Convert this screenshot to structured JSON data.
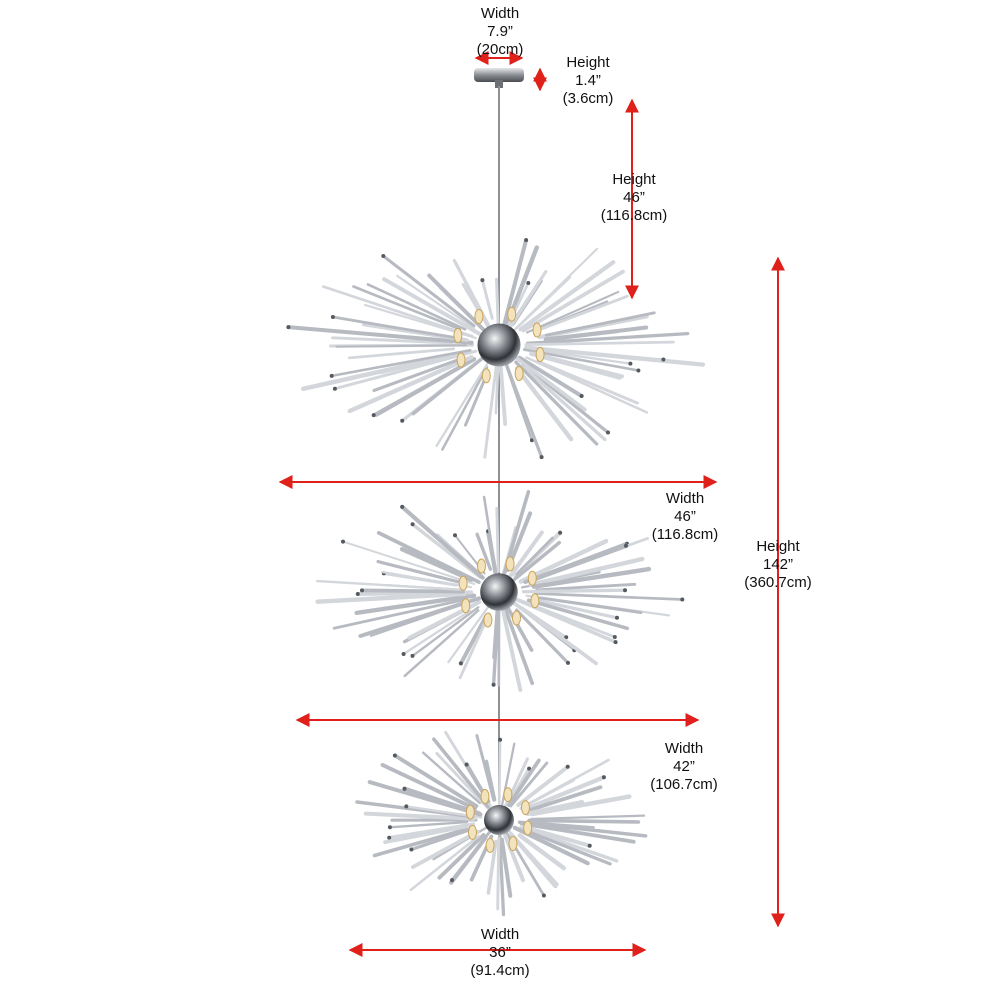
{
  "colors": {
    "arrow": "#e0201b",
    "chrome": "#8a8d92",
    "rod": "#c9ccd1",
    "bulb": "#d9b36a"
  },
  "dimensions": {
    "canopy_width": {
      "label": "Width",
      "imperial": "7.9”",
      "metric": "(20cm)"
    },
    "canopy_height": {
      "label": "Height",
      "imperial": "1.4”",
      "metric": "(3.6cm)"
    },
    "drop_height": {
      "label": "Height",
      "imperial": "46”",
      "metric": "(116.8cm)"
    },
    "tier1_width": {
      "label": "Width",
      "imperial": "46”",
      "metric": "(116.8cm)"
    },
    "overall_height": {
      "label": "Height",
      "imperial": "142”",
      "metric": "(360.7cm)"
    },
    "tier2_width": {
      "label": "Width",
      "imperial": "42”",
      "metric": "(106.7cm)"
    },
    "tier3_width": {
      "label": "Width",
      "imperial": "36”",
      "metric": "(91.4cm)"
    }
  }
}
